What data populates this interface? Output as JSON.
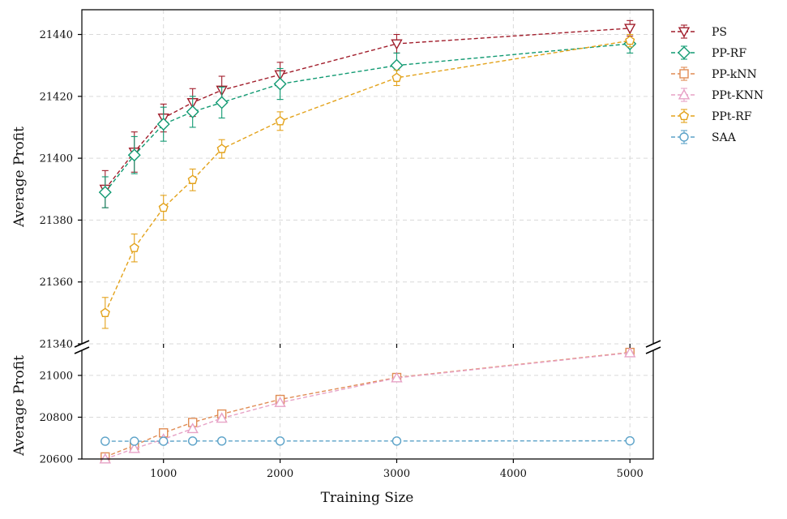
{
  "chart_data": {
    "type": "line",
    "xlabel": "Training Size",
    "ylabel_top": "Average Profit",
    "ylabel_bottom": "Average Profit",
    "xlim": [
      300,
      5200
    ],
    "x_ticks": [
      1000,
      2000,
      3000,
      4000,
      5000
    ],
    "top_panel": {
      "ylim": [
        21340,
        21448
      ],
      "y_ticks": [
        21340,
        21360,
        21380,
        21400,
        21420,
        21440
      ]
    },
    "bottom_panel": {
      "ylim": [
        20600,
        21120
      ],
      "y_ticks": [
        20600,
        20800,
        21000
      ]
    },
    "grid": true,
    "broken_axis": true,
    "legend_position": "outside-top-right",
    "series": [
      {
        "name": "PS",
        "color": "#a11d2b",
        "marker": "triangle-down",
        "panel": "top",
        "x": [
          500,
          750,
          1000,
          1250,
          1500,
          2000,
          3000,
          5000
        ],
        "y": [
          21390,
          21402,
          21413,
          21418,
          21422,
          21427,
          21437,
          21442
        ],
        "err": [
          6,
          6.5,
          4.5,
          4.5,
          4.5,
          4,
          3,
          2.5
        ]
      },
      {
        "name": "PP-RF",
        "color": "#119a72",
        "marker": "diamond",
        "panel": "top",
        "x": [
          500,
          750,
          1000,
          1250,
          1500,
          2000,
          3000,
          5000
        ],
        "y": [
          21389,
          21401,
          21411,
          21415,
          21418,
          21424,
          21430,
          21437
        ],
        "err": [
          5,
          6,
          5.5,
          5,
          5,
          5,
          4,
          3
        ]
      },
      {
        "name": "PP-kNN",
        "color": "#e08c54",
        "marker": "square",
        "panel": "bottom",
        "x": [
          500,
          750,
          1000,
          1250,
          1500,
          2000,
          3000,
          5000
        ],
        "y": [
          20610,
          20665,
          20725,
          20775,
          20815,
          20885,
          20990,
          21110
        ],
        "err": [
          4,
          4,
          4,
          4,
          4,
          4,
          4,
          4
        ]
      },
      {
        "name": "PPt-KNN",
        "color": "#e7a2c6",
        "marker": "triangle-up",
        "panel": "bottom",
        "x": [
          500,
          750,
          1000,
          1250,
          1500,
          2000,
          3000,
          5000
        ],
        "y": [
          20600,
          20650,
          20695,
          20745,
          20795,
          20870,
          20988,
          21108
        ],
        "err": [
          4,
          4,
          4,
          4,
          4,
          4,
          4,
          4
        ]
      },
      {
        "name": "PPt-RF",
        "color": "#e3a21a",
        "marker": "pentagon",
        "panel": "top",
        "x": [
          500,
          750,
          1000,
          1250,
          1500,
          2000,
          3000,
          5000
        ],
        "y": [
          21350,
          21371,
          21384,
          21393,
          21403,
          21412,
          21426,
          21438
        ],
        "err": [
          5,
          4.5,
          4,
          3.5,
          3,
          3,
          2.5,
          2
        ]
      },
      {
        "name": "SAA",
        "color": "#5ba2c8",
        "marker": "circle",
        "panel": "bottom",
        "x": [
          500,
          750,
          1000,
          1250,
          1500,
          2000,
          3000,
          5000
        ],
        "y": [
          20685,
          20685,
          20685,
          20686,
          20686,
          20686,
          20686,
          20687
        ],
        "err": [
          3,
          3,
          3,
          3,
          3,
          3,
          3,
          3
        ]
      }
    ]
  }
}
